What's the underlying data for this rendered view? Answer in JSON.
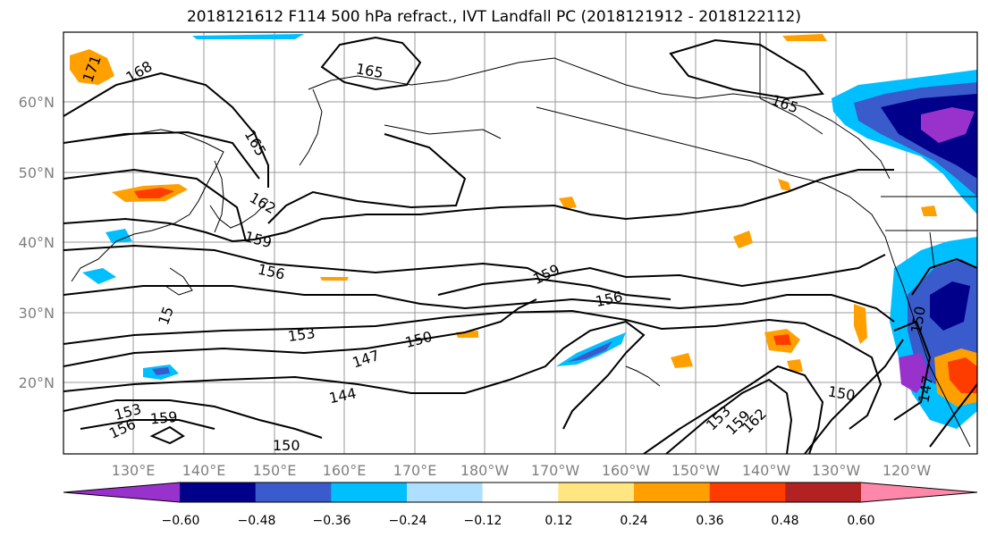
{
  "title": "2018121612 F114 500 hPa refract., IVT Landfall PC (2018121912 - 2018122112)",
  "lat_labels": [
    "60°N",
    "50°N",
    "40°N",
    "30°N",
    "20°N"
  ],
  "lon_labels": [
    "130°E",
    "140°E",
    "150°E",
    "160°E",
    "170°E",
    "180°W",
    "170°W",
    "160°W",
    "150°W",
    "140°W",
    "130°W",
    "120°W"
  ],
  "contour_labels": [
    "171",
    "168",
    "165",
    "165",
    "162",
    "159",
    "156",
    "159",
    "156",
    "153",
    "150",
    "147",
    "144",
    "153",
    "156",
    "159",
    "150",
    "153",
    "159",
    "162",
    "150",
    "147",
    "150",
    "165",
    "15"
  ],
  "colorbar": {
    "ticks": [
      "−0.60",
      "−0.48",
      "−0.36",
      "−0.24",
      "−0.12",
      "0.12",
      "0.24",
      "0.36",
      "0.48",
      "0.60"
    ],
    "colors": [
      "#9932cc",
      "#00008b",
      "#3a5bcc",
      "#00bfff",
      "#afdfff",
      "#ffffff",
      "#ffe680",
      "#ffa000",
      "#ff3c00",
      "#b22222",
      "#ff88aa"
    ]
  }
}
